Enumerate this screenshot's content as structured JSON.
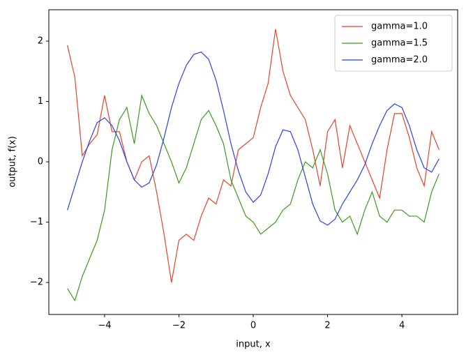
{
  "chart_data": {
    "type": "line",
    "xlabel": "input, x",
    "ylabel": "output, f(x)",
    "x": [
      -5,
      -4.8,
      -4.6,
      -4.4,
      -4.2,
      -4,
      -3.8,
      -3.6,
      -3.4,
      -3.2,
      -3,
      -2.8,
      -2.6,
      -2.4,
      -2.2,
      -2,
      -1.8,
      -1.6,
      -1.4,
      -1.2,
      -1,
      -0.8,
      -0.6,
      -0.4,
      -0.2,
      0,
      0.2,
      0.4,
      0.6,
      0.8,
      1,
      1.2,
      1.4,
      1.6,
      1.8,
      2,
      2.2,
      2.4,
      2.6,
      2.8,
      3,
      3.2,
      3.4,
      3.6,
      3.8,
      4,
      4.2,
      4.4,
      4.6,
      4.8,
      5
    ],
    "series": [
      {
        "name": "gamma=1.0",
        "color": "#e8412c",
        "values": [
          1.93,
          1.4,
          0.1,
          0.3,
          0.45,
          1.1,
          0.5,
          0.5,
          0.0,
          -0.3,
          0.0,
          0.1,
          -0.5,
          -1.2,
          -2.0,
          -1.3,
          -1.2,
          -1.3,
          -0.9,
          -0.6,
          -0.7,
          -0.3,
          -0.4,
          0.2,
          0.3,
          0.4,
          0.9,
          1.3,
          2.2,
          1.5,
          1.1,
          0.9,
          0.7,
          0.2,
          -0.4,
          0.5,
          0.7,
          -0.1,
          0.6,
          0.3,
          0.0,
          -0.3,
          -0.6,
          0.2,
          0.8,
          0.8,
          0.4,
          -0.1,
          -0.4,
          0.5,
          0.2
        ]
      },
      {
        "name": "gamma=1.5",
        "color": "#3a9a1e",
        "values": [
          -2.1,
          -2.3,
          -1.9,
          -1.6,
          -1.3,
          -0.8,
          0.2,
          0.7,
          0.9,
          0.3,
          1.1,
          0.8,
          0.6,
          0.3,
          0.0,
          -0.35,
          -0.1,
          0.3,
          0.7,
          0.85,
          0.6,
          0.3,
          -0.3,
          -0.6,
          -0.9,
          -1.0,
          -1.2,
          -1.1,
          -1.0,
          -0.8,
          -0.7,
          -0.3,
          0.0,
          -0.1,
          0.2,
          -0.2,
          -0.8,
          -1.0,
          -0.9,
          -1.2,
          -0.8,
          -0.5,
          -0.9,
          -1.0,
          -0.8,
          -0.8,
          -0.9,
          -0.9,
          -1.0,
          -0.5,
          -0.2
        ]
      },
      {
        "name": "gamma=2.0",
        "color": "#2b3ff0",
        "values": [
          -0.8,
          -0.4,
          0.0,
          0.35,
          0.65,
          0.73,
          0.6,
          0.35,
          0.0,
          -0.3,
          -0.42,
          -0.35,
          -0.05,
          0.4,
          0.9,
          1.3,
          1.6,
          1.78,
          1.82,
          1.7,
          1.35,
          0.85,
          0.3,
          -0.15,
          -0.5,
          -0.67,
          -0.55,
          -0.2,
          0.25,
          0.53,
          0.5,
          0.2,
          -0.25,
          -0.7,
          -0.98,
          -1.05,
          -0.95,
          -0.7,
          -0.5,
          -0.3,
          -0.05,
          0.3,
          0.6,
          0.85,
          0.96,
          0.9,
          0.6,
          0.2,
          -0.1,
          -0.17,
          0.05
        ]
      }
    ],
    "xlim": [
      -5.5,
      5.5
    ],
    "ylim": [
      -2.53,
      2.52
    ],
    "xticks": [
      {
        "value": -4,
        "label": "−4"
      },
      {
        "value": -2,
        "label": "−2"
      },
      0,
      2,
      4
    ],
    "yticks": [
      {
        "value": -2,
        "label": "−2"
      },
      {
        "value": -1,
        "label": "−1"
      },
      0,
      1,
      2
    ],
    "legend": "upper right"
  }
}
